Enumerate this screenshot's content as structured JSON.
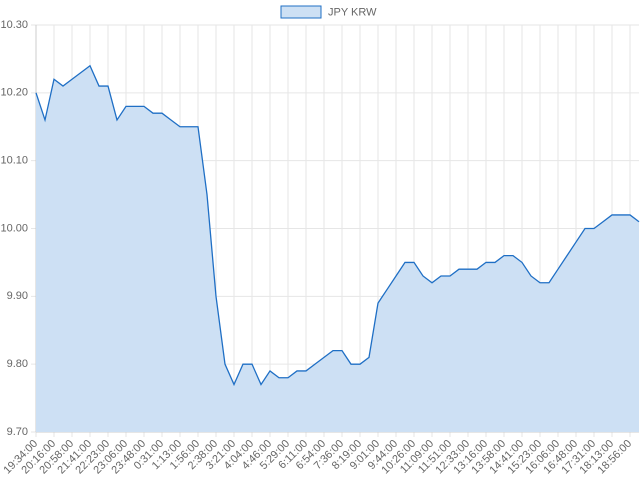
{
  "chart_data": {
    "type": "line",
    "categories": [
      "19:34:00",
      null,
      "20:16:00",
      null,
      "20:58:00",
      null,
      "21:41:00",
      null,
      "22:23:00",
      null,
      "23:06:00",
      null,
      "23:48:00",
      null,
      "0:31:00",
      null,
      "1:13:00",
      null,
      "1:56:00",
      null,
      "2:38:00",
      null,
      "3:21:00",
      null,
      "4:04:00",
      null,
      "4:46:00",
      null,
      "5:29:00",
      null,
      "6:11:00",
      null,
      "6:54:00",
      null,
      "7:36:00",
      null,
      "8:19:00",
      null,
      "9:01:00",
      null,
      "9:44:00",
      null,
      "10:26:00",
      null,
      "11:09:00",
      null,
      "11:51:00",
      null,
      "12:33:00",
      null,
      "13:16:00",
      null,
      "13:58:00",
      null,
      "14:41:00",
      null,
      "15:23:00",
      null,
      "16:06:00",
      null,
      "16:48:00",
      null,
      "17:31:00",
      null,
      "18:13:00",
      null,
      "18:56:00",
      null
    ],
    "series": [
      {
        "name": "JPY KRW",
        "color": "#1f6fc5",
        "fill": "#cde0f4",
        "values": [
          10.2,
          10.16,
          10.22,
          10.21,
          10.22,
          10.23,
          10.24,
          10.21,
          10.21,
          10.16,
          10.18,
          10.18,
          10.18,
          10.17,
          10.17,
          10.16,
          10.15,
          10.15,
          10.15,
          10.05,
          9.9,
          9.8,
          9.77,
          9.8,
          9.8,
          9.77,
          9.79,
          9.78,
          9.78,
          9.79,
          9.79,
          9.8,
          9.81,
          9.82,
          9.82,
          9.8,
          9.8,
          9.81,
          9.89,
          9.91,
          9.93,
          9.95,
          9.95,
          9.93,
          9.92,
          9.93,
          9.93,
          9.94,
          9.94,
          9.94,
          9.95,
          9.95,
          9.96,
          9.96,
          9.95,
          9.93,
          9.92,
          9.92,
          9.94,
          9.96,
          9.98,
          10.0,
          10.0,
          10.01,
          10.02,
          10.02,
          10.02,
          10.01
        ]
      }
    ],
    "ylim": [
      9.7,
      10.3
    ],
    "yticks": [
      {
        "value": 9.7,
        "label": "9.70"
      },
      {
        "value": 9.8,
        "label": "9.80"
      },
      {
        "value": 9.9,
        "label": "9.90"
      },
      {
        "value": 10.0,
        "label": "10.00"
      },
      {
        "value": 10.1,
        "label": "10.10"
      },
      {
        "value": 10.2,
        "label": "10.20"
      },
      {
        "value": 10.3,
        "label": "10.30"
      }
    ],
    "grid": true,
    "legend": "top"
  }
}
